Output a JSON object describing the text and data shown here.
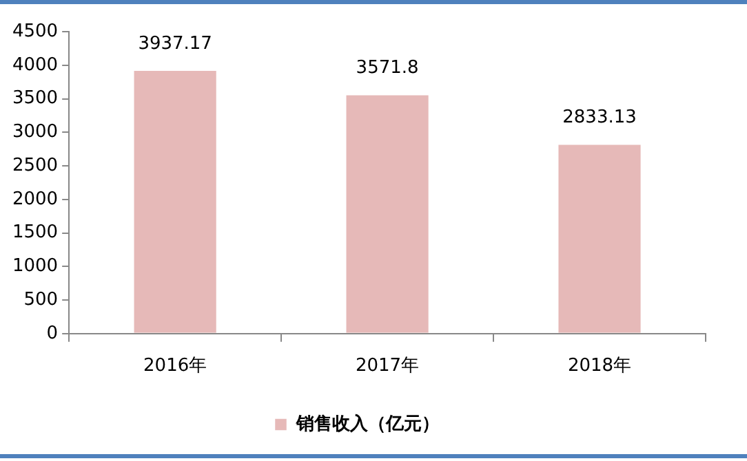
{
  "chart_data": {
    "type": "bar",
    "categories": [
      "2016年",
      "2017年",
      "2018年"
    ],
    "series": [
      {
        "name": "销售收入（亿元）",
        "color": "#e6b9b8",
        "values": [
          3937.17,
          3571.8,
          2833.13
        ]
      }
    ],
    "ylim": [
      0,
      4500
    ],
    "yticks": [
      0,
      500,
      1000,
      1500,
      2000,
      2500,
      3000,
      3500,
      4000,
      4500
    ],
    "data_labels": true,
    "grid": false,
    "legend": "bottom"
  }
}
